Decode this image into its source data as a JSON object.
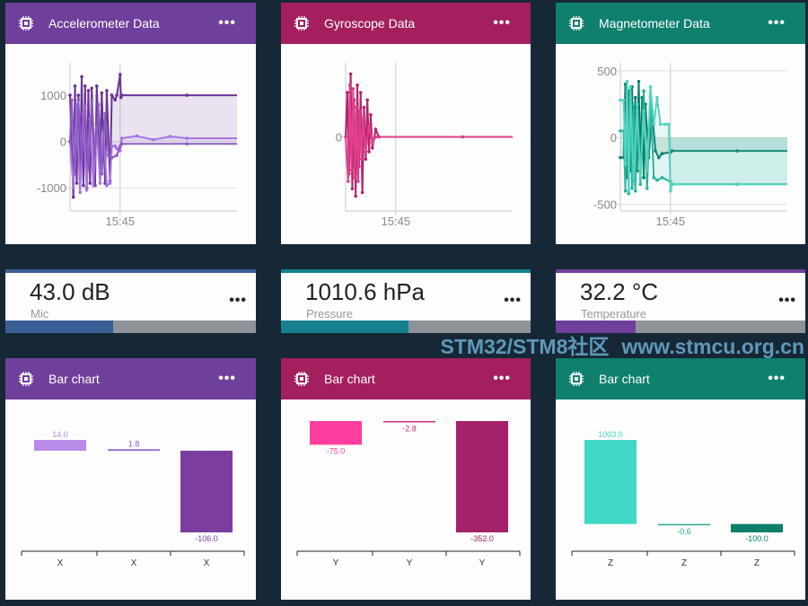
{
  "colors": {
    "background": "#162836",
    "accel": "#6f3f9c",
    "gyro": "#a31f5e",
    "mag": "#0f7f6e",
    "mic": "#3a5f95",
    "pressure": "#17808f",
    "temp": "#6f3f9c"
  },
  "line_cards": [
    {
      "title": "Accelerometer Data",
      "menu": "•••",
      "icon": "chip-icon"
    },
    {
      "title": "Gyroscope Data",
      "menu": "•••",
      "icon": "chip-icon"
    },
    {
      "title": "Magnetometer Data",
      "menu": "•••",
      "icon": "chip-icon"
    }
  ],
  "value_cards": [
    {
      "value": "43.0 dB",
      "label": "Mic",
      "menu": "•••",
      "progress": 0.43
    },
    {
      "value": "1010.6 hPa",
      "label": "Pressure",
      "menu": "•••",
      "progress": 0.51
    },
    {
      "value": "32.2 °C",
      "label": "Temperature",
      "menu": "•••",
      "progress": 0.32
    }
  ],
  "bar_cards": [
    {
      "title": "Bar chart",
      "menu": "•••",
      "icon": "chip-icon"
    },
    {
      "title": "Bar chart",
      "menu": "•••",
      "icon": "chip-icon"
    },
    {
      "title": "Bar chart",
      "menu": "•••",
      "icon": "chip-icon"
    }
  ],
  "watermark": {
    "line1": "STM32/STM8社区",
    "line2": "www.stmcu.org.cn"
  },
  "chart_data": [
    {
      "type": "line",
      "title": "Accelerometer Data",
      "xtick": "15:45",
      "xtick_t": 30,
      "xlim": [
        0,
        100
      ],
      "ylim": [
        -1500,
        1700
      ],
      "yticks": [
        1000,
        0,
        -1000
      ],
      "series": [
        {
          "name": "accel-1",
          "color": "#6a3395",
          "points": [
            [
              0,
              1000
            ],
            [
              2,
              -1200
            ],
            [
              3,
              1200
            ],
            [
              4,
              -900
            ],
            [
              5,
              1000
            ],
            [
              6,
              -800
            ],
            [
              7,
              1400
            ],
            [
              8,
              -950
            ],
            [
              9,
              1200
            ],
            [
              10,
              -1000
            ],
            [
              11,
              1100
            ],
            [
              12,
              -900
            ],
            [
              13,
              1150
            ],
            [
              15,
              -950
            ],
            [
              16,
              1200
            ],
            [
              18,
              -600
            ],
            [
              19,
              1050
            ],
            [
              21,
              -900
            ],
            [
              22,
              1100
            ],
            [
              24,
              -850
            ],
            [
              25,
              1000
            ],
            [
              27,
              900
            ],
            [
              28,
              1000
            ],
            [
              30,
              1450
            ],
            [
              30.5,
              950
            ],
            [
              31,
              1000
            ],
            [
              70,
              1000
            ],
            [
              100,
              1000
            ]
          ]
        },
        {
          "name": "accel-2",
          "color": "#a774e0",
          "points": [
            [
              0,
              0
            ],
            [
              2,
              -1000
            ],
            [
              4,
              800
            ],
            [
              6,
              -1100
            ],
            [
              8,
              600
            ],
            [
              10,
              -1050
            ],
            [
              12,
              500
            ],
            [
              14,
              -950
            ],
            [
              16,
              300
            ],
            [
              18,
              -900
            ],
            [
              20,
              200
            ],
            [
              22,
              -950
            ],
            [
              24,
              -900
            ],
            [
              25,
              -100
            ],
            [
              27,
              -100
            ],
            [
              28,
              -150
            ],
            [
              30,
              -200
            ],
            [
              31,
              70
            ],
            [
              40,
              120
            ],
            [
              50,
              40
            ],
            [
              60,
              110
            ],
            [
              70,
              70
            ],
            [
              100,
              70
            ]
          ]
        },
        {
          "name": "accel-3",
          "color": "#8c5cc0",
          "points": [
            [
              0,
              0
            ],
            [
              1,
              900
            ],
            [
              3,
              -700
            ],
            [
              5,
              900
            ],
            [
              7,
              -400
            ],
            [
              9,
              800
            ],
            [
              11,
              -600
            ],
            [
              13,
              900
            ],
            [
              15,
              -300
            ],
            [
              17,
              800
            ],
            [
              19,
              -700
            ],
            [
              21,
              600
            ],
            [
              23,
              -300
            ],
            [
              25,
              -350
            ],
            [
              28,
              -300
            ],
            [
              30,
              -100
            ],
            [
              31,
              -50
            ],
            [
              70,
              -50
            ],
            [
              100,
              -50
            ]
          ]
        }
      ]
    },
    {
      "type": "line",
      "title": "Gyroscope Data",
      "xtick": "15:45",
      "xtick_t": 30,
      "xlim": [
        0,
        100
      ],
      "ylim": [
        -1000,
        1000
      ],
      "yticks": [
        0
      ],
      "series": [
        {
          "name": "gyro-1",
          "color": "#b0236a",
          "points": [
            [
              0,
              0
            ],
            [
              1,
              600
            ],
            [
              2,
              -500
            ],
            [
              3,
              850
            ],
            [
              4,
              -700
            ],
            [
              5,
              500
            ],
            [
              6,
              -800
            ],
            [
              7,
              700
            ],
            [
              8,
              -400
            ],
            [
              9,
              600
            ],
            [
              10,
              -750
            ],
            [
              11,
              400
            ],
            [
              12,
              -300
            ],
            [
              13,
              500
            ],
            [
              14,
              -200
            ],
            [
              15,
              300
            ],
            [
              16,
              -150
            ],
            [
              18,
              100
            ],
            [
              20,
              0
            ],
            [
              70,
              0
            ],
            [
              100,
              0
            ]
          ]
        },
        {
          "name": "gyro-2",
          "color": "#e0408c",
          "points": [
            [
              0,
              0
            ],
            [
              1.5,
              -600
            ],
            [
              2.5,
              700
            ],
            [
              3.5,
              -450
            ],
            [
              4.5,
              650
            ],
            [
              5.5,
              -550
            ],
            [
              6.5,
              400
            ],
            [
              7.5,
              -600
            ],
            [
              8.5,
              350
            ],
            [
              9.5,
              -300
            ],
            [
              10.5,
              250
            ],
            [
              12,
              -200
            ],
            [
              14,
              150
            ],
            [
              16,
              -80
            ],
            [
              18,
              0
            ],
            [
              100,
              0
            ]
          ]
        }
      ]
    },
    {
      "type": "line",
      "title": "Magnetometer Data",
      "xtick": "15:45",
      "xtick_t": 30,
      "xlim": [
        0,
        100
      ],
      "ylim": [
        -550,
        560
      ],
      "yticks": [
        500,
        0,
        -500
      ],
      "series": [
        {
          "name": "mag-1",
          "color": "#0b7a66",
          "points": [
            [
              0,
              -150
            ],
            [
              2,
              -150
            ],
            [
              3,
              400
            ],
            [
              4,
              -300
            ],
            [
              5,
              350
            ],
            [
              6,
              -250
            ],
            [
              7,
              380
            ],
            [
              8,
              -200
            ],
            [
              9,
              300
            ],
            [
              10,
              -250
            ],
            [
              11,
              420
            ],
            [
              12,
              -200
            ],
            [
              13,
              300
            ],
            [
              14,
              -300
            ],
            [
              15,
              250
            ],
            [
              17,
              -150
            ],
            [
              19,
              200
            ],
            [
              21,
              -100
            ],
            [
              23,
              -150
            ],
            [
              25,
              -120
            ],
            [
              30,
              -110
            ],
            [
              31,
              -100
            ],
            [
              70,
              -100
            ],
            [
              100,
              -100
            ]
          ]
        },
        {
          "name": "mag-2",
          "color": "#27b39c",
          "points": [
            [
              0,
              50
            ],
            [
              2,
              50
            ],
            [
              3,
              -400
            ],
            [
              4,
              350
            ],
            [
              5,
              -420
            ],
            [
              6,
              300
            ],
            [
              7,
              -380
            ],
            [
              8,
              250
            ],
            [
              9,
              -400
            ],
            [
              10,
              200
            ],
            [
              12,
              -350
            ],
            [
              14,
              350
            ],
            [
              16,
              -380
            ],
            [
              18,
              300
            ],
            [
              20,
              -300
            ],
            [
              22,
              -320
            ],
            [
              25,
              -300
            ],
            [
              30,
              -330
            ],
            [
              31,
              -350
            ],
            [
              70,
              -350
            ],
            [
              100,
              -350
            ]
          ]
        },
        {
          "name": "mag-3",
          "color": "#52d3bf",
          "points": [
            [
              0,
              280
            ],
            [
              2,
              280
            ],
            [
              3,
              -200
            ],
            [
              4,
              420
            ],
            [
              5,
              -400
            ],
            [
              6,
              380
            ],
            [
              8,
              -350
            ],
            [
              10,
              250
            ],
            [
              12,
              -300
            ],
            [
              14,
              200
            ],
            [
              16,
              -250
            ],
            [
              18,
              380
            ],
            [
              20,
              100
            ],
            [
              22,
              300
            ],
            [
              24,
              100
            ],
            [
              27,
              100
            ],
            [
              29,
              100
            ],
            [
              30,
              -400
            ],
            [
              31,
              -350
            ],
            [
              100,
              -350
            ]
          ]
        }
      ]
    },
    {
      "type": "bar",
      "categories": [
        "X",
        "X",
        "X"
      ],
      "values": [
        14.0,
        1.8,
        -106.0
      ],
      "labels": [
        "14.0",
        "1.8",
        "-106.0"
      ],
      "colors": [
        "#b98be8",
        "#8e52c8",
        "#7a3f9e"
      ]
    },
    {
      "type": "bar",
      "categories": [
        "Y",
        "Y",
        "Y"
      ],
      "values": [
        -75.0,
        -2.8,
        -352.0
      ],
      "labels": [
        "-75.0",
        "-2.8",
        "-352.0"
      ],
      "colors": [
        "#ff3fa0",
        "#d02c7a",
        "#a3226a"
      ]
    },
    {
      "type": "bar",
      "categories": [
        "Z",
        "Z",
        "Z"
      ],
      "values": [
        1003.0,
        -0.6,
        -100.0
      ],
      "labels": [
        "1003.0",
        "-0.6",
        "-100.0"
      ],
      "colors": [
        "#40d8c4",
        "#2aa894",
        "#0d7f6b"
      ]
    }
  ]
}
